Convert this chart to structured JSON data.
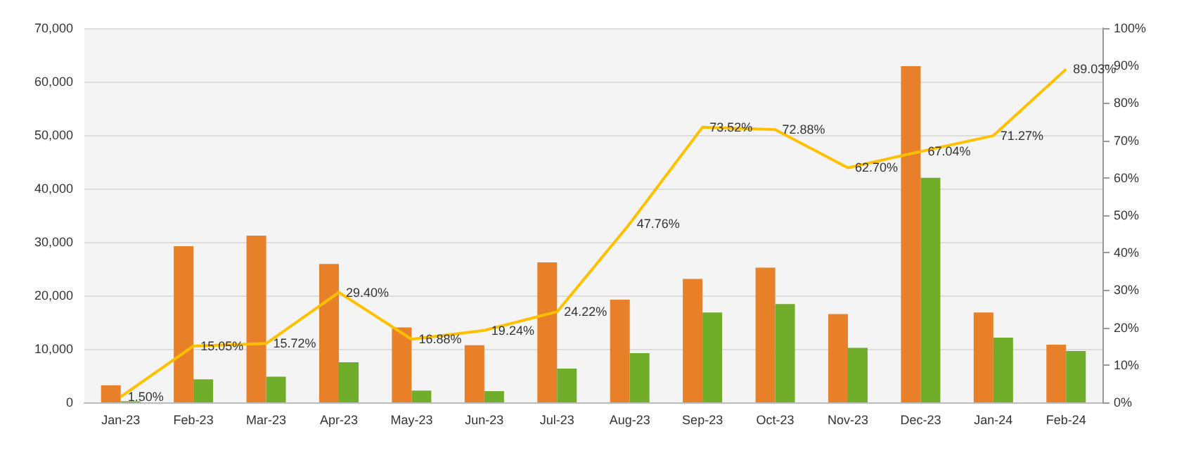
{
  "chart_data": {
    "type": "bar",
    "categories": [
      "Jan-23",
      "Feb-23",
      "Mar-23",
      "Apr-23",
      "May-23",
      "Jun-23",
      "Jul-23",
      "Aug-23",
      "Sep-23",
      "Oct-23",
      "Nov-23",
      "Dec-23",
      "Jan-24",
      "Feb-24"
    ],
    "series": [
      {
        "color": "#e8802a",
        "values": [
          3200,
          29200,
          31200,
          25900,
          14000,
          10700,
          26200,
          19200,
          23100,
          25200,
          16500,
          62900,
          16800,
          10800
        ]
      },
      {
        "color": "#70ad2a",
        "values": [
          200,
          4300,
          4800,
          7500,
          2200,
          2100,
          6300,
          9200,
          16800,
          18400,
          10200,
          42000,
          12100,
          9600
        ]
      },
      {
        "type": "line",
        "axis": "y2",
        "color": "#ffc000",
        "values": [
          1.5,
          15.05,
          15.72,
          29.4,
          16.88,
          19.24,
          24.22,
          47.76,
          73.52,
          72.88,
          62.7,
          67.04,
          71.27,
          89.03
        ],
        "value_labels": [
          "1.50%",
          "15.05%",
          "15.72%",
          "29.40%",
          "16.88%",
          "19.24%",
          "24.22%",
          "47.76%",
          "73.52%",
          "72.88%",
          "62.70%",
          "67.04%",
          "71.27%",
          "89.03%"
        ]
      }
    ],
    "ylim": [
      0,
      70000
    ],
    "yticks": [
      {
        "value": 0,
        "label": "0"
      },
      {
        "value": 10000,
        "label": "10,000"
      },
      {
        "value": 20000,
        "label": "20,000"
      },
      {
        "value": 30000,
        "label": "30,000"
      },
      {
        "value": 40000,
        "label": "40,000"
      },
      {
        "value": 50000,
        "label": "50,000"
      },
      {
        "value": 60000,
        "label": "60,000"
      },
      {
        "value": 70000,
        "label": "70,000"
      }
    ],
    "y2lim": [
      0,
      100
    ],
    "y2ticks": [
      {
        "value": 0,
        "label": "0%"
      },
      {
        "value": 10,
        "label": "10%"
      },
      {
        "value": 20,
        "label": "20%"
      },
      {
        "value": 30,
        "label": "30%"
      },
      {
        "value": 40,
        "label": "40%"
      },
      {
        "value": 50,
        "label": "50%"
      },
      {
        "value": 60,
        "label": "60%"
      },
      {
        "value": 70,
        "label": "70%"
      },
      {
        "value": 80,
        "label": "80%"
      },
      {
        "value": 90,
        "label": "90%"
      },
      {
        "value": 100,
        "label": "100%"
      }
    ],
    "grid": "y",
    "marker": "none",
    "line_style": "solid"
  }
}
